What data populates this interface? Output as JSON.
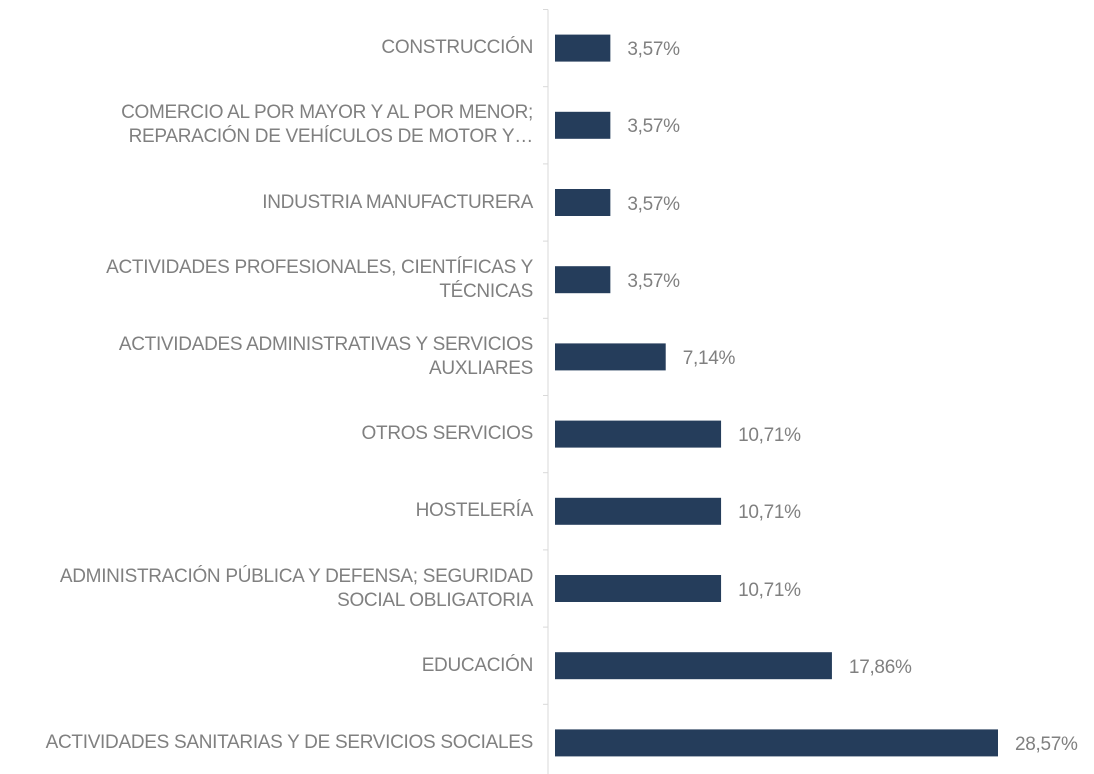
{
  "chart_data": {
    "type": "bar",
    "orientation": "horizontal",
    "color": "#253d5b",
    "categories": [
      "CONSTRUCCIÓN",
      "COMERCIO AL POR MAYOR Y AL POR MENOR;\nREPARACIÓN DE VEHÍCULOS DE MOTOR Y…",
      "INDUSTRIA MANUFACTURERA",
      "ACTIVIDADES PROFESIONALES, CIENTÍFICAS Y\nTÉCNICAS",
      "ACTIVIDADES ADMINISTRATIVAS Y SERVICIOS\nAUXLIARES",
      "OTROS SERVICIOS",
      "HOSTELERÍA",
      "ADMINISTRACIÓN PÚBLICA Y DEFENSA; SEGURIDAD\nSOCIAL OBLIGATORIA",
      "EDUCACIÓN",
      "ACTIVIDADES SANITARIAS Y DE SERVICIOS SOCIALES"
    ],
    "values": [
      3.57,
      3.57,
      3.57,
      3.57,
      7.14,
      10.71,
      10.71,
      10.71,
      17.86,
      28.57
    ],
    "value_labels": [
      "3,57%",
      "3,57%",
      "3,57%",
      "3,57%",
      "7,14%",
      "10,71%",
      "10,71%",
      "10,71%",
      "17,86%",
      "28,57%"
    ]
  }
}
